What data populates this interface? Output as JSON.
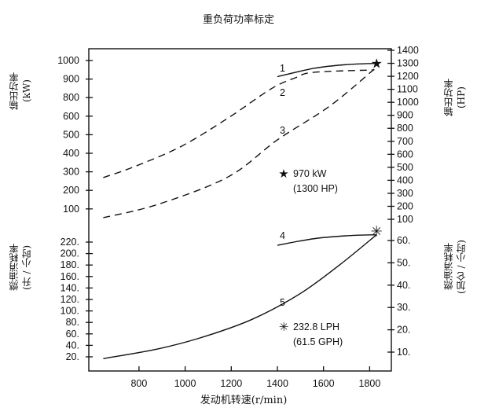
{
  "chart_data": {
    "type": "line",
    "title": "重负荷功率标定",
    "xlabel": "发动机转速(r/min)",
    "ylabel_left_top": "输出功率",
    "ylabel_left_top_unit": "(kW)",
    "ylabel_right_top": "输出功率",
    "ylabel_right_top_unit": "(HP)",
    "ylabel_left_bottom": "燃油消耗率",
    "ylabel_left_bottom_unit": "(升 / 小时)",
    "ylabel_right_bottom": "燃油消耗率",
    "ylabel_right_bottom_unit": "(加仑 / 小时)",
    "x_ticks": [
      "800",
      "1000",
      "1200",
      "1400",
      "1600",
      "1800"
    ],
    "xlim": [
      587,
      1888
    ],
    "kw_ticks": [
      "1000",
      "900",
      "800",
      "600",
      "500",
      "400",
      "300",
      "200",
      "100"
    ],
    "hp_ticks": [
      "1400",
      "1300",
      "1200",
      "1100",
      "1000",
      "900",
      "800",
      "700",
      "600",
      "500",
      "400",
      "300",
      "200",
      "100"
    ],
    "lph_ticks": [
      "220.",
      "200.",
      "180.",
      "160.",
      "140.",
      "120.",
      "100.",
      "80.",
      "60.",
      "40.",
      "20."
    ],
    "gph_ticks": [
      "60.",
      "50.",
      "40.",
      "30.",
      "20.",
      "10."
    ],
    "grid": false,
    "power_series_unit": "HP",
    "power_series": [
      {
        "name": "1",
        "style": "solid",
        "x": [
          1400,
          1560,
          1700,
          1830
        ],
        "y": [
          1197,
          1262,
          1290,
          1300
        ]
      },
      {
        "name": "2",
        "style": "dashed",
        "x": [
          645,
          780,
          984,
          1187,
          1373,
          1480,
          1559,
          1820
        ],
        "y": [
          421,
          505,
          662,
          880,
          1104,
          1190,
          1231,
          1249
        ]
      },
      {
        "name": "3",
        "style": "dashed",
        "x": [
          645,
          882,
          1187,
          1400,
          1627,
          1820
        ],
        "y": [
          112,
          215,
          427,
          711,
          971,
          1255
        ]
      }
    ],
    "fuel_series_unit": "L/h",
    "fuel_series": [
      {
        "name": "4",
        "style": "solid",
        "x": [
          1400,
          1560,
          1700,
          1830
        ],
        "y": [
          214.5,
          226,
          231,
          232.8
        ]
      },
      {
        "name": "5",
        "style": "solid",
        "x": [
          645,
          884,
          1089,
          1294,
          1498,
          1669,
          1830
        ],
        "y": [
          17,
          34,
          56,
          86,
          130,
          180,
          232.8
        ]
      }
    ],
    "rated_power_marker": {
      "x": 1830,
      "y_hp": 1300,
      "icon": "star"
    },
    "rated_fuel_marker": {
      "x": 1830,
      "y_lph": 232.8,
      "icon": "asterisk"
    },
    "annotations": {
      "power_line1": "970 kW",
      "power_line2": "(1300 HP)",
      "fuel_line1": "232.8 LPH",
      "fuel_line2": "(61.5 GPH)"
    }
  }
}
